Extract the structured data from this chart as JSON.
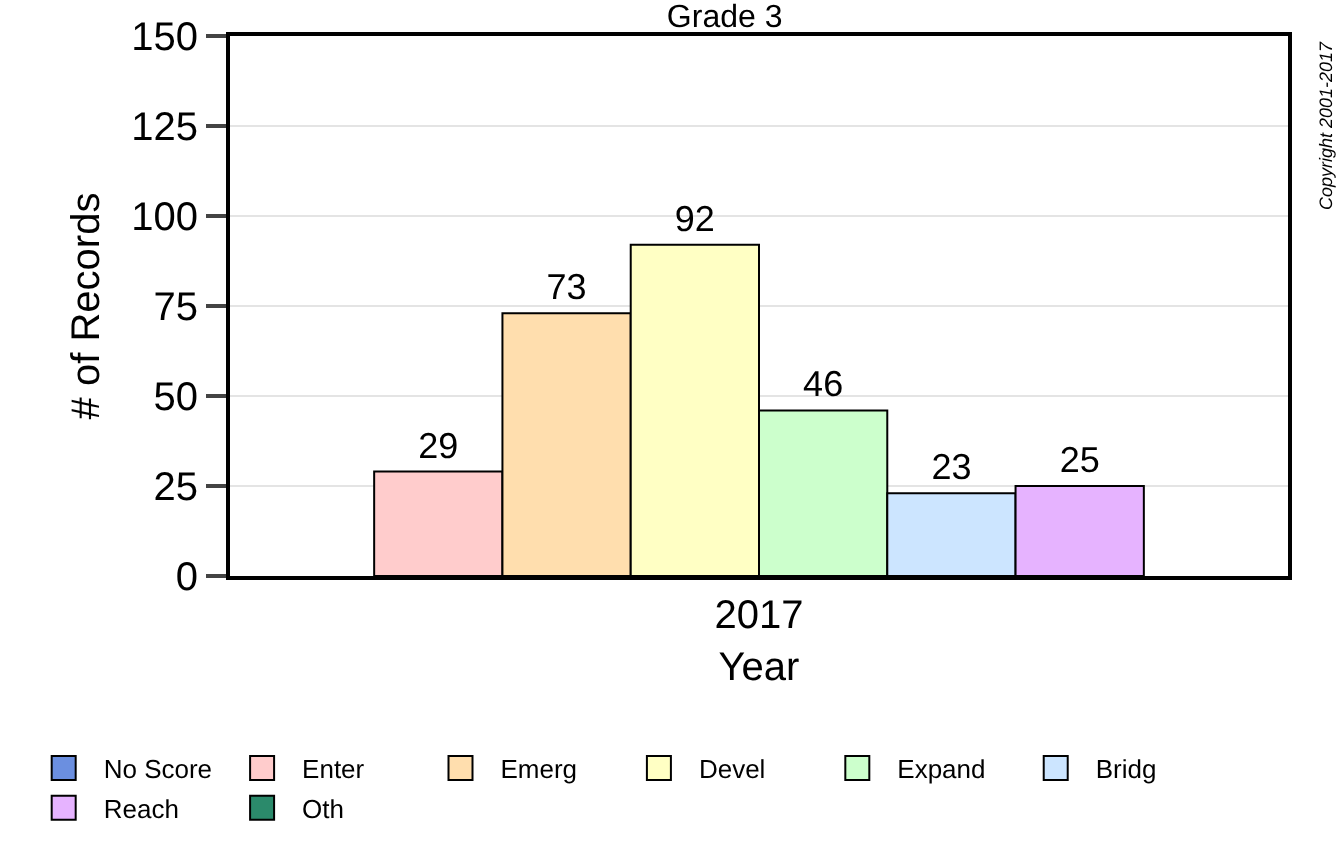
{
  "chart_data": {
    "type": "bar",
    "title": "Grade 3",
    "xlabel": "Year",
    "ylabel": "# of Records",
    "categories": [
      "2017"
    ],
    "series": [
      {
        "name": "No Score",
        "color": "#6b8fe0",
        "values": [
          null
        ],
        "value_labels": [
          null
        ]
      },
      {
        "name": "Enter",
        "color": "#ffcccc",
        "values": [
          29
        ],
        "value_labels": [
          "29"
        ]
      },
      {
        "name": "Emerg",
        "color": "#ffdeae",
        "values": [
          73
        ],
        "value_labels": [
          "73"
        ]
      },
      {
        "name": "Devel",
        "color": "#ffffc4",
        "values": [
          92
        ],
        "value_labels": [
          "92"
        ]
      },
      {
        "name": "Expand",
        "color": "#ccffcc",
        "values": [
          46
        ],
        "value_labels": [
          "46"
        ]
      },
      {
        "name": "Bridg",
        "color": "#cce5ff",
        "values": [
          23
        ],
        "value_labels": [
          "23"
        ]
      },
      {
        "name": "Reach",
        "color": "#e6b3ff",
        "values": [
          25
        ],
        "value_labels": [
          "25"
        ]
      },
      {
        "name": "Oth",
        "color": "#2b8a6b",
        "values": [
          null
        ],
        "value_labels": [
          null
        ]
      }
    ],
    "ylim": [
      0,
      150
    ],
    "yticks": [
      0,
      25,
      50,
      75,
      100,
      125,
      150
    ],
    "grid": "y",
    "legend": "bottom",
    "annotations": [
      "Copyright 2001-2017"
    ]
  }
}
